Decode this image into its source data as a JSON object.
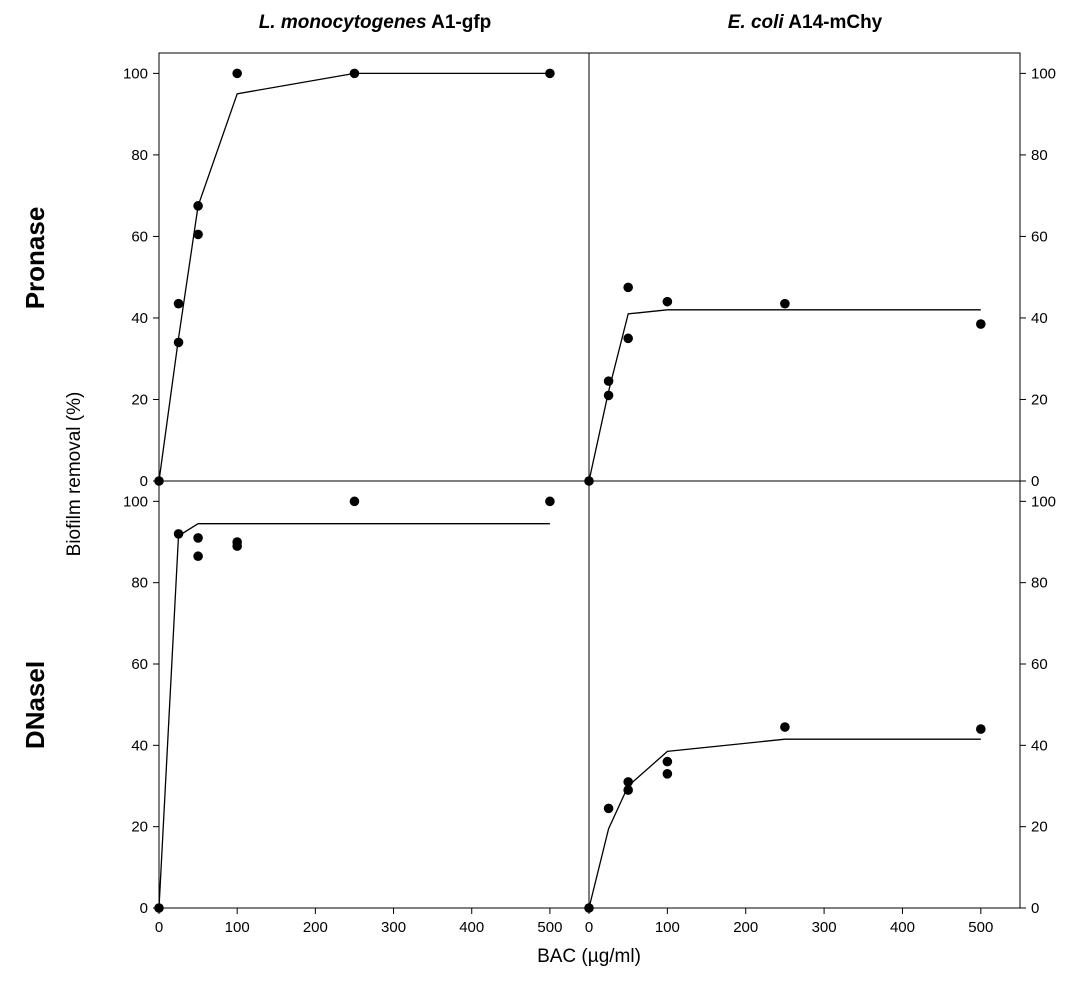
{
  "figure": {
    "x_label": "BAC (µg/ml)",
    "y_label": "Biofilm removal (%)",
    "columns": [
      {
        "title_italic": "L. monocytogenes",
        "title_rest": " A1-gfp"
      },
      {
        "title_italic": "E. coli",
        "title_rest": " A14-mChy"
      }
    ],
    "rows": [
      "Pronase",
      "DNaseI"
    ],
    "x_ticks": [
      "0",
      "100",
      "200",
      "300",
      "400",
      "500"
    ],
    "y_ticks": [
      "0",
      "20",
      "40",
      "60",
      "80",
      "100"
    ]
  },
  "chart_data": [
    {
      "type": "scatter",
      "panel": "L. monocytogenes A1-gfp / Pronase",
      "xlim": [
        0,
        550
      ],
      "ylim": [
        0,
        105
      ],
      "points": {
        "x": [
          0,
          25,
          25,
          50,
          50,
          100,
          250,
          500
        ],
        "y": [
          0,
          34,
          43.5,
          60.5,
          67.5,
          100,
          100,
          100
        ]
      },
      "fit": {
        "x": [
          0,
          25,
          50,
          100,
          250,
          500
        ],
        "y": [
          0,
          35,
          67.5,
          95,
          100,
          100
        ]
      }
    },
    {
      "type": "scatter",
      "panel": "E. coli A14-mChy / Pronase",
      "xlim": [
        0,
        550
      ],
      "ylim": [
        0,
        105
      ],
      "points": {
        "x": [
          0,
          25,
          25,
          50,
          50,
          100,
          250,
          500
        ],
        "y": [
          0,
          21,
          24.5,
          35,
          47.5,
          44,
          43.5,
          38.5
        ]
      },
      "fit": {
        "x": [
          0,
          25,
          50,
          100,
          250,
          500
        ],
        "y": [
          0,
          22,
          41,
          42,
          42,
          42
        ]
      }
    },
    {
      "type": "scatter",
      "panel": "L. monocytogenes A1-gfp / DNaseI",
      "xlim": [
        0,
        550
      ],
      "ylim": [
        0,
        105
      ],
      "points": {
        "x": [
          0,
          25,
          50,
          50,
          100,
          100,
          250,
          500
        ],
        "y": [
          0,
          92,
          86.5,
          91,
          89,
          90,
          100,
          100
        ]
      },
      "fit": {
        "x": [
          0,
          25,
          50,
          100,
          250,
          500
        ],
        "y": [
          0,
          91.5,
          94.5,
          94.5,
          94.5,
          94.5
        ]
      }
    },
    {
      "type": "scatter",
      "panel": "E. coli A14-mChy / DNaseI",
      "xlim": [
        0,
        550
      ],
      "ylim": [
        0,
        105
      ],
      "points": {
        "x": [
          0,
          25,
          50,
          50,
          100,
          100,
          250,
          500
        ],
        "y": [
          0,
          24.5,
          29,
          31,
          33,
          36,
          44.5,
          44
        ]
      },
      "fit": {
        "x": [
          0,
          25,
          50,
          100,
          250,
          500
        ],
        "y": [
          0,
          19.5,
          30,
          38.5,
          41.5,
          41.5
        ]
      }
    }
  ]
}
